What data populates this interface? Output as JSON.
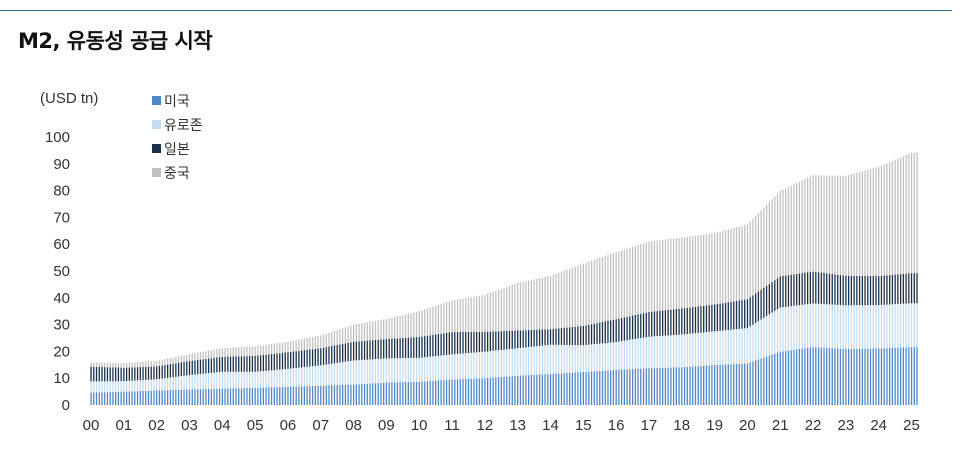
{
  "title": "M2, 유동성 공급 시작",
  "chart_data": {
    "type": "bar",
    "stacked": true,
    "frequency": "monthly",
    "unit_label": "(USD tn)",
    "ylim": [
      0,
      100
    ],
    "yticks": [
      "0",
      "10",
      "20",
      "30",
      "40",
      "50",
      "60",
      "70",
      "80",
      "90",
      "100"
    ],
    "xticks": [
      "00",
      "01",
      "02",
      "03",
      "04",
      "05",
      "06",
      "07",
      "08",
      "09",
      "10",
      "11",
      "12",
      "13",
      "14",
      "15",
      "16",
      "17",
      "18",
      "19",
      "20",
      "21",
      "22",
      "23",
      "24",
      "25"
    ],
    "legend_position": "top-left",
    "anchor_points": [
      {
        "x": "00",
        "values": [
          4.6,
          4.2,
          5.5,
          1.6
        ]
      },
      {
        "x": "01",
        "values": [
          5.0,
          3.9,
          5.0,
          1.8
        ]
      },
      {
        "x": "02",
        "values": [
          5.4,
          4.2,
          4.8,
          2.1
        ]
      },
      {
        "x": "03",
        "values": [
          5.8,
          5.4,
          5.2,
          2.6
        ]
      },
      {
        "x": "04",
        "values": [
          6.1,
          6.3,
          5.6,
          3.2
        ]
      },
      {
        "x": "05",
        "values": [
          6.4,
          6.0,
          5.9,
          3.6
        ]
      },
      {
        "x": "06",
        "values": [
          6.8,
          6.7,
          6.2,
          3.9
        ]
      },
      {
        "x": "07",
        "values": [
          7.2,
          7.6,
          6.4,
          4.8
        ]
      },
      {
        "x": "08",
        "values": [
          7.6,
          9.0,
          7.0,
          6.4
        ]
      },
      {
        "x": "09",
        "values": [
          8.4,
          9.0,
          7.2,
          7.5
        ]
      },
      {
        "x": "10",
        "values": [
          8.7,
          8.9,
          7.8,
          9.6
        ]
      },
      {
        "x": "11",
        "values": [
          9.5,
          9.4,
          8.3,
          11.8
        ]
      },
      {
        "x": "12",
        "values": [
          10.0,
          9.9,
          7.4,
          13.8
        ]
      },
      {
        "x": "13",
        "values": [
          10.9,
          10.3,
          6.6,
          17.7
        ]
      },
      {
        "x": "14",
        "values": [
          11.6,
          10.9,
          5.8,
          19.9
        ]
      },
      {
        "x": "15",
        "values": [
          12.3,
          10.0,
          7.2,
          23.3
        ]
      },
      {
        "x": "16",
        "values": [
          13.1,
          10.4,
          8.5,
          25.0
        ]
      },
      {
        "x": "17",
        "values": [
          13.7,
          11.8,
          9.2,
          26.3
        ]
      },
      {
        "x": "18",
        "values": [
          14.1,
          12.2,
          9.7,
          26.4
        ]
      },
      {
        "x": "19",
        "values": [
          14.9,
          12.6,
          10.0,
          26.6
        ]
      },
      {
        "x": "20",
        "values": [
          15.5,
          13.2,
          10.8,
          28.0
        ]
      },
      {
        "x": "21",
        "values": [
          19.9,
          16.5,
          11.6,
          31.9
        ]
      },
      {
        "x": "22",
        "values": [
          21.6,
          16.3,
          11.9,
          35.9
        ]
      },
      {
        "x": "23",
        "values": [
          20.9,
          16.3,
          11.0,
          37.3
        ]
      },
      {
        "x": "24",
        "values": [
          21.1,
          16.2,
          10.8,
          40.8
        ]
      },
      {
        "x": "25",
        "values": [
          21.6,
          16.4,
          11.2,
          44.9
        ]
      }
    ],
    "series": [
      {
        "name": "미국",
        "color": "#4f86c6"
      },
      {
        "name": "유로존",
        "color": "#c8dcef"
      },
      {
        "name": "일본",
        "color": "#1c2f4a"
      },
      {
        "name": "중국",
        "color": "#c2c2c2"
      }
    ]
  }
}
